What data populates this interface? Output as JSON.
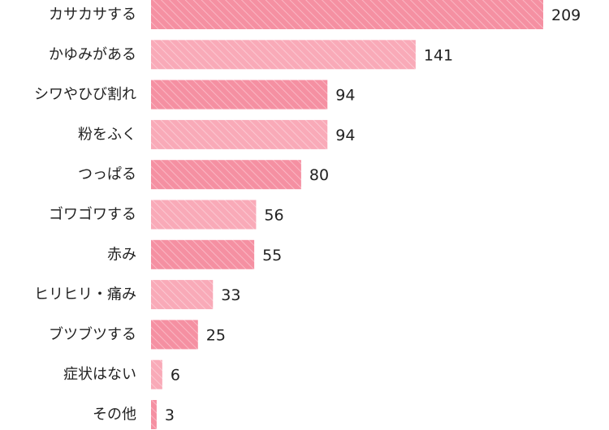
{
  "chart_data": {
    "type": "bar",
    "orientation": "horizontal",
    "categories": [
      "カサカサする",
      "かゆみがある",
      "シワやひび割れ",
      "粉をふく",
      "つっぱる",
      "ゴワゴワする",
      "赤み",
      "ヒリヒリ・痛み",
      "ブツブツする",
      "症状はない",
      "その他"
    ],
    "values": [
      209,
      141,
      94,
      94,
      80,
      56,
      55,
      33,
      25,
      6,
      3
    ],
    "title": "",
    "xlabel": "",
    "ylabel": "",
    "xlim": [
      0,
      209
    ],
    "grid": false,
    "legend": "none",
    "data_labels": true,
    "bar_pattern": "diagonal-stripes",
    "colors": {
      "dark": "#f590a2",
      "light": "#f9aab8",
      "stripe": "#ffffff"
    }
  }
}
